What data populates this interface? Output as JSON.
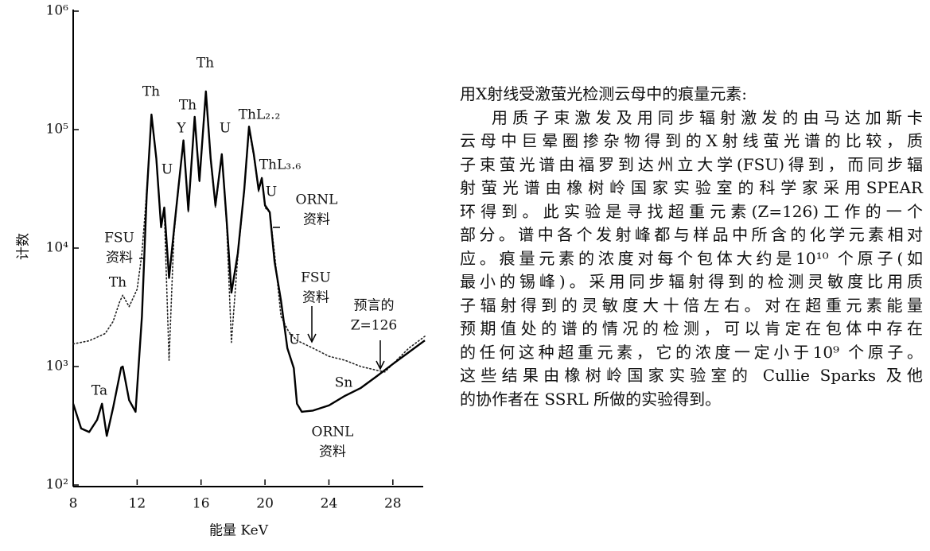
{
  "chart_data": {
    "type": "line",
    "xlabel": "能量 KeV",
    "ylabel": "计数",
    "xlim": [
      8,
      30
    ],
    "xticks": [
      8,
      12,
      16,
      20,
      24,
      28
    ],
    "ylim": [
      100,
      1000000
    ],
    "log_y": true,
    "yticks": [
      {
        "value": 100,
        "label": "10²"
      },
      {
        "value": 1000,
        "label": "10³"
      },
      {
        "value": 10000,
        "label": "10⁴"
      },
      {
        "value": 100000,
        "label": "10⁵"
      },
      {
        "value": 1000000,
        "label": "10⁶"
      }
    ],
    "grid": false,
    "series": [
      {
        "name": "FSU",
        "color": "#222222",
        "style": "dotted",
        "x": [
          8,
          9,
          10,
          10.5,
          10.9,
          11.1,
          11.5,
          12,
          12.3,
          12.6,
          12.9,
          13.2,
          13.5,
          13.7,
          14.0,
          14.3,
          14.6,
          14.9,
          15.2,
          15.6,
          15.9,
          16.3,
          16.6,
          16.9,
          17.3,
          17.6,
          17.9,
          18.3,
          18.7,
          19.0,
          19.3,
          19.6,
          19.8,
          20.0,
          20.3,
          20.6,
          21,
          21.5,
          22,
          23,
          24,
          25,
          26,
          27,
          27.5,
          28,
          29,
          30
        ],
        "values": [
          1550,
          1650,
          1900,
          2400,
          3500,
          4000,
          3200,
          4500,
          9000,
          30000,
          130000,
          55000,
          15000,
          21000,
          1130,
          13000,
          33000,
          80000,
          20000,
          125000,
          36000,
          200000,
          55000,
          22000,
          60000,
          16000,
          1600,
          8500,
          30000,
          100000,
          60000,
          30000,
          38000,
          22000,
          20000,
          9000,
          2650,
          1950,
          1660,
          1430,
          1220,
          1130,
          1000,
          930,
          900,
          1050,
          1430,
          1800
        ]
      },
      {
        "name": "ORNL",
        "color": "#000000",
        "style": "solid",
        "x": [
          8,
          8.5,
          9,
          9.5,
          9.8,
          10.1,
          10.5,
          11,
          11.1,
          11.5,
          11.9,
          12.3,
          12.6,
          12.9,
          13.2,
          13.5,
          13.7,
          14.0,
          14.3,
          14.6,
          14.9,
          15.2,
          15.6,
          15.9,
          16.3,
          16.6,
          16.9,
          17.3,
          17.6,
          17.9,
          18.3,
          18.7,
          19.0,
          19.3,
          19.6,
          19.8,
          20.0,
          20.3,
          20.6,
          21,
          21.4,
          21.8,
          22,
          22.3,
          23,
          24,
          25,
          26,
          27,
          28,
          29,
          30
        ],
        "values": [
          485,
          300,
          280,
          355,
          485,
          260,
          450,
          980,
          1000,
          520,
          415,
          2650,
          28000,
          134000,
          57000,
          15000,
          22000,
          5600,
          14000,
          34000,
          81000,
          21000,
          128000,
          37000,
          210000,
          57000,
          23000,
          62000,
          17000,
          4200,
          9000,
          31000,
          106000,
          62000,
          31000,
          39000,
          23000,
          20000,
          7700,
          3600,
          1430,
          970,
          485,
          415,
          425,
          470,
          565,
          660,
          830,
          1050,
          1320,
          1660
        ]
      }
    ],
    "annotations": [
      [
        "Th"
      ],
      [
        "Th"
      ],
      [
        "Th"
      ],
      [
        "Y"
      ],
      [
        "U"
      ],
      [
        "U"
      ],
      [
        "ThL₂.₂"
      ],
      [
        "ThL₃.₆"
      ],
      [
        "U"
      ],
      [
        "ORNL",
        "资料"
      ],
      [
        "FSU",
        "资料"
      ],
      [
        "Th"
      ],
      [
        "FSU",
        "资料"
      ],
      [
        "U"
      ],
      [
        "预言的",
        "Z=126"
      ],
      [
        "Ta"
      ],
      [
        "Sn"
      ],
      [
        "ORNL",
        "资料"
      ]
    ]
  },
  "caption": {
    "title": "用X射线受激萤光检测云母中的痕量元素:",
    "lines": [
      "用质子束激发及用同步辐射激发的由马达加斯卡",
      "云母中巨晕圈掺杂物得到的X射线萤光谱的比较，质",
      "子束萤光谱由福罗到达州立大学(FSU)得到，而同步辐",
      "射萤光谱由橡树岭国家实验室的科学家采用SPEAR",
      "环得到。此实验是寻找超重元素(Z=126)工作的一个",
      "部分。谱中各个发射峰都与样品中所含的化学元素相对",
      "应。痕量元素的浓度对每个包体大约是10¹⁰ 个原子(如",
      "最小的锡峰)。采用同步辐射得到的检测灵敏度比用质",
      "子辐射得到的灵敏度大十倍左右。对在超重元素能量",
      "预期值处的谱的情况的检测，可以肯定在包体中存在",
      "的任何这种超重元素，它的浓度一定小于10⁹ 个原子。",
      "这些结果由橡树岭国家实验室的 Cullie Sparks 及他",
      "的协作者在 SSRL 所做的实验得到。"
    ]
  }
}
